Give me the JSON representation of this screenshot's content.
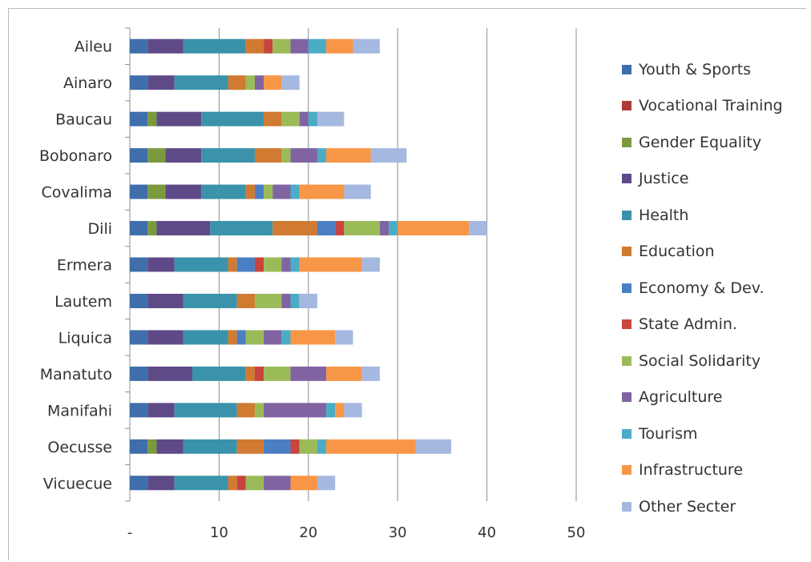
{
  "chart_data": {
    "type": "bar",
    "orientation": "horizontal",
    "stacked": true,
    "categories": [
      "Aileu",
      "Ainaro",
      "Baucau",
      "Bobonaro",
      "Covalima",
      "Dili",
      "Ermera",
      "Lautem",
      "Liquica",
      "Manatuto",
      "Manifahi",
      "Oecusse",
      "Vicuecue"
    ],
    "xlim": [
      0,
      50
    ],
    "xticks": [
      {
        "value": 0,
        "label": "-"
      },
      {
        "value": 10,
        "label": "10"
      },
      {
        "value": 20,
        "label": "20"
      },
      {
        "value": 30,
        "label": "30"
      },
      {
        "value": 40,
        "label": "40"
      },
      {
        "value": 50,
        "label": "50"
      }
    ],
    "grid": "vertical",
    "legend_position": "right",
    "series": [
      {
        "name": "Youth & Sports",
        "color": "#3f6eaa",
        "values": [
          2,
          2,
          2,
          2,
          2,
          2,
          2,
          2,
          2,
          2,
          2,
          2,
          2
        ]
      },
      {
        "name": "Vocational Training",
        "color": "#b03a35",
        "values": [
          0,
          0,
          0,
          0,
          0,
          0,
          0,
          0,
          0,
          0,
          0,
          0,
          0
        ]
      },
      {
        "name": "Gender Equality",
        "color": "#7b9a3e",
        "values": [
          0,
          0,
          1,
          2,
          2,
          1,
          0,
          0,
          0,
          0,
          0,
          1,
          0
        ]
      },
      {
        "name": "Justice",
        "color": "#5f4a88",
        "values": [
          4,
          3,
          5,
          4,
          4,
          6,
          3,
          4,
          4,
          5,
          3,
          3,
          3
        ]
      },
      {
        "name": "Health",
        "color": "#3a93aa",
        "values": [
          7,
          6,
          7,
          6,
          5,
          7,
          6,
          6,
          5,
          6,
          7,
          6,
          6
        ]
      },
      {
        "name": "Education",
        "color": "#d07a32",
        "values": [
          2,
          2,
          2,
          3,
          1,
          5,
          1,
          2,
          1,
          1,
          2,
          3,
          1
        ]
      },
      {
        "name": "Economy & Dev.",
        "color": "#4a7fc4",
        "values": [
          0,
          0,
          0,
          0,
          1,
          2,
          2,
          0,
          1,
          0,
          0,
          3,
          0
        ]
      },
      {
        "name": "State Admin.",
        "color": "#c8443f",
        "values": [
          1,
          0,
          0,
          0,
          0,
          1,
          1,
          0,
          0,
          1,
          0,
          1,
          1
        ]
      },
      {
        "name": "Social Solidarity",
        "color": "#9bbb59",
        "values": [
          2,
          1,
          2,
          1,
          1,
          4,
          2,
          3,
          2,
          3,
          1,
          2,
          2
        ]
      },
      {
        "name": "Agriculture",
        "color": "#8064a2",
        "values": [
          2,
          1,
          1,
          3,
          2,
          1,
          1,
          1,
          2,
          4,
          7,
          0,
          3
        ]
      },
      {
        "name": "Tourism",
        "color": "#4bacc6",
        "values": [
          2,
          0,
          1,
          1,
          1,
          1,
          1,
          1,
          1,
          0,
          1,
          1,
          0
        ]
      },
      {
        "name": "Infrastructure",
        "color": "#f79646",
        "values": [
          3,
          2,
          0,
          5,
          5,
          8,
          7,
          0,
          5,
          4,
          1,
          10,
          3
        ]
      },
      {
        "name": "Other Secter",
        "color": "#a5b8e0",
        "values": [
          3,
          2,
          3,
          4,
          3,
          2,
          2,
          2,
          2,
          2,
          2,
          4,
          2
        ]
      }
    ]
  }
}
